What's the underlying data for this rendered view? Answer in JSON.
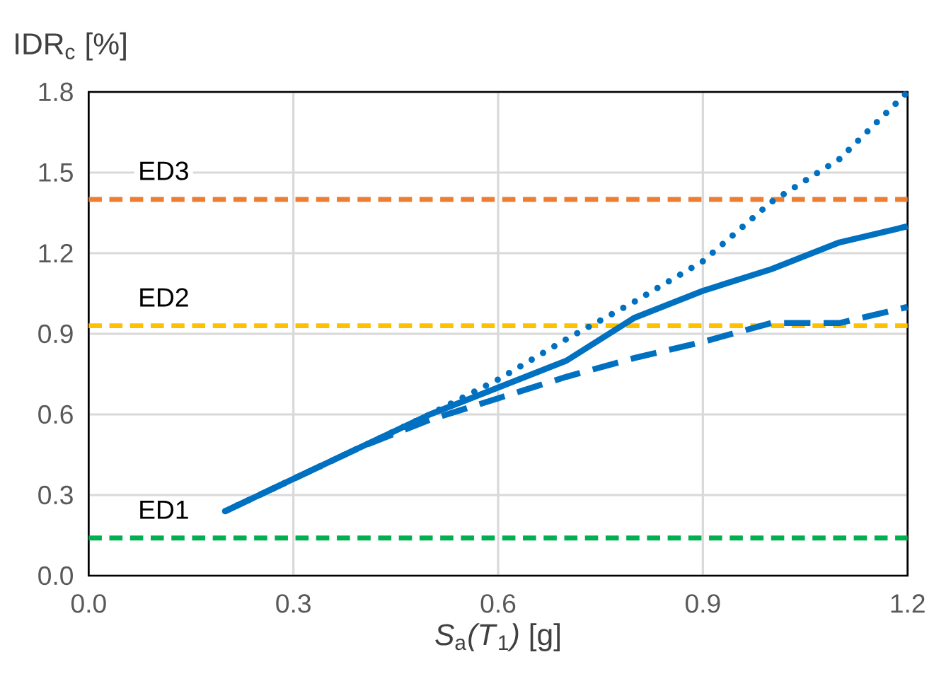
{
  "chart_data": {
    "type": "line",
    "xlabel": "*S*$_{a}$*(T*$_{1}$*)* [g]",
    "ylabel": "IDR$_{c}$ [%]",
    "x": [
      0.2,
      0.3,
      0.4,
      0.5,
      0.6,
      0.7,
      0.8,
      0.9,
      1.0,
      1.1,
      1.2
    ],
    "series": [
      {
        "color": "#0070c0",
        "line_style": "solid",
        "values": [
          0.24,
          0.36,
          0.48,
          0.6,
          0.7,
          0.8,
          0.96,
          1.06,
          1.14,
          1.24,
          1.3
        ]
      },
      {
        "color": "#0070c0",
        "line_style": "dashed",
        "values": [
          0.24,
          0.36,
          0.48,
          0.58,
          0.66,
          0.74,
          0.81,
          0.87,
          0.94,
          0.94,
          1.0
        ]
      },
      {
        "color": "#0070c0",
        "line_style": "dotted",
        "values": [
          0.24,
          0.36,
          0.48,
          0.6,
          0.73,
          0.88,
          1.02,
          1.17,
          1.39,
          1.55,
          1.8
        ]
      }
    ],
    "ref_lines": [
      {
        "axis": "y",
        "value": 0.14,
        "label": "ED1",
        "color": "#00b050",
        "line_style": "dashed"
      },
      {
        "axis": "y",
        "value": 0.93,
        "label": "ED2",
        "color": "#ffc000",
        "line_style": "dashed"
      },
      {
        "axis": "y",
        "value": 1.4,
        "label": "ED3",
        "color": "#ed7d31",
        "line_style": "dashed"
      }
    ],
    "xlim": [
      0,
      1.2
    ],
    "xticks": [
      {
        "value": 0,
        "label": "0.0"
      },
      0.3,
      0.6,
      0.9,
      1.2
    ],
    "ylim": [
      0,
      1.8
    ],
    "yticks": [
      {
        "value": 0,
        "label": "0.0"
      },
      0.3,
      0.6,
      0.9,
      1.2,
      1.5,
      1.8
    ],
    "grid": true,
    "marker": "none"
  }
}
